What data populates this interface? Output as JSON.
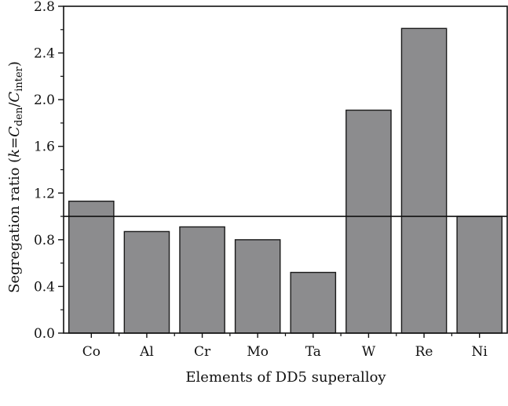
{
  "chart_data": {
    "type": "bar",
    "title": "",
    "xlabel": "Elements of DD5 superalloy",
    "ylabel": {
      "prefix": "Segregation ratio (",
      "k": "k",
      "eq": "=",
      "c1": "C",
      "sub1": "den",
      "slash": "/",
      "c2": "C",
      "sub2": "inter",
      "suffix": ")"
    },
    "categories": [
      "Co",
      "Al",
      "Cr",
      "Mo",
      "Ta",
      "W",
      "Re",
      "Ni"
    ],
    "values": [
      1.13,
      0.87,
      0.91,
      0.8,
      0.52,
      1.91,
      2.61,
      1.0
    ],
    "ylim": [
      0,
      2.8
    ],
    "yticks": [
      "0.0",
      "0.4",
      "0.8",
      "1.2",
      "1.6",
      "2.0",
      "2.4",
      "2.8"
    ],
    "reference_line": 1.0,
    "grid": false,
    "bar_color": "#8c8c8e",
    "bar_edge_color": "#1a1a1a"
  }
}
